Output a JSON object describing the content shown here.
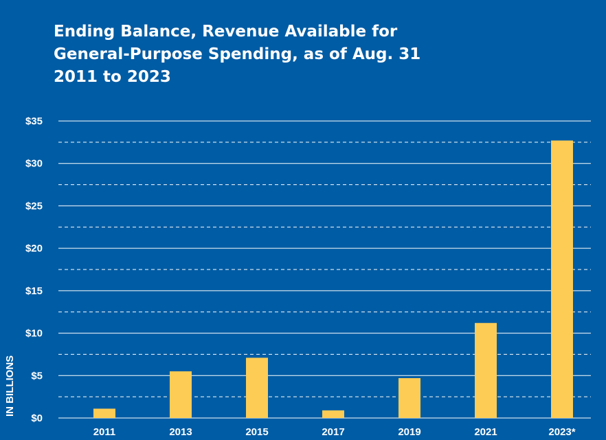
{
  "chart_data": {
    "type": "bar",
    "title_lines": [
      "Ending Balance, Revenue Available for",
      "General-Purpose Spending, as of Aug. 31",
      "2011 to 2023"
    ],
    "ylabel": "IN BILLIONS",
    "categories": [
      "2011",
      "2013",
      "2015",
      "2017",
      "2019",
      "2021",
      "2023*"
    ],
    "values": [
      1.1,
      5.5,
      7.1,
      0.9,
      4.7,
      11.2,
      32.7
    ],
    "ylim": [
      0,
      35
    ],
    "yticks": [
      0,
      5,
      10,
      15,
      20,
      25,
      30,
      35
    ],
    "ytick_labels": [
      "$0",
      "$5",
      "$10",
      "$15",
      "$20",
      "$25",
      "$30",
      "$35"
    ],
    "grid": true,
    "colors": {
      "background": "#005ca4",
      "bar": "#fccc55",
      "grid": "#ffffff",
      "text": "#ffffff"
    }
  }
}
